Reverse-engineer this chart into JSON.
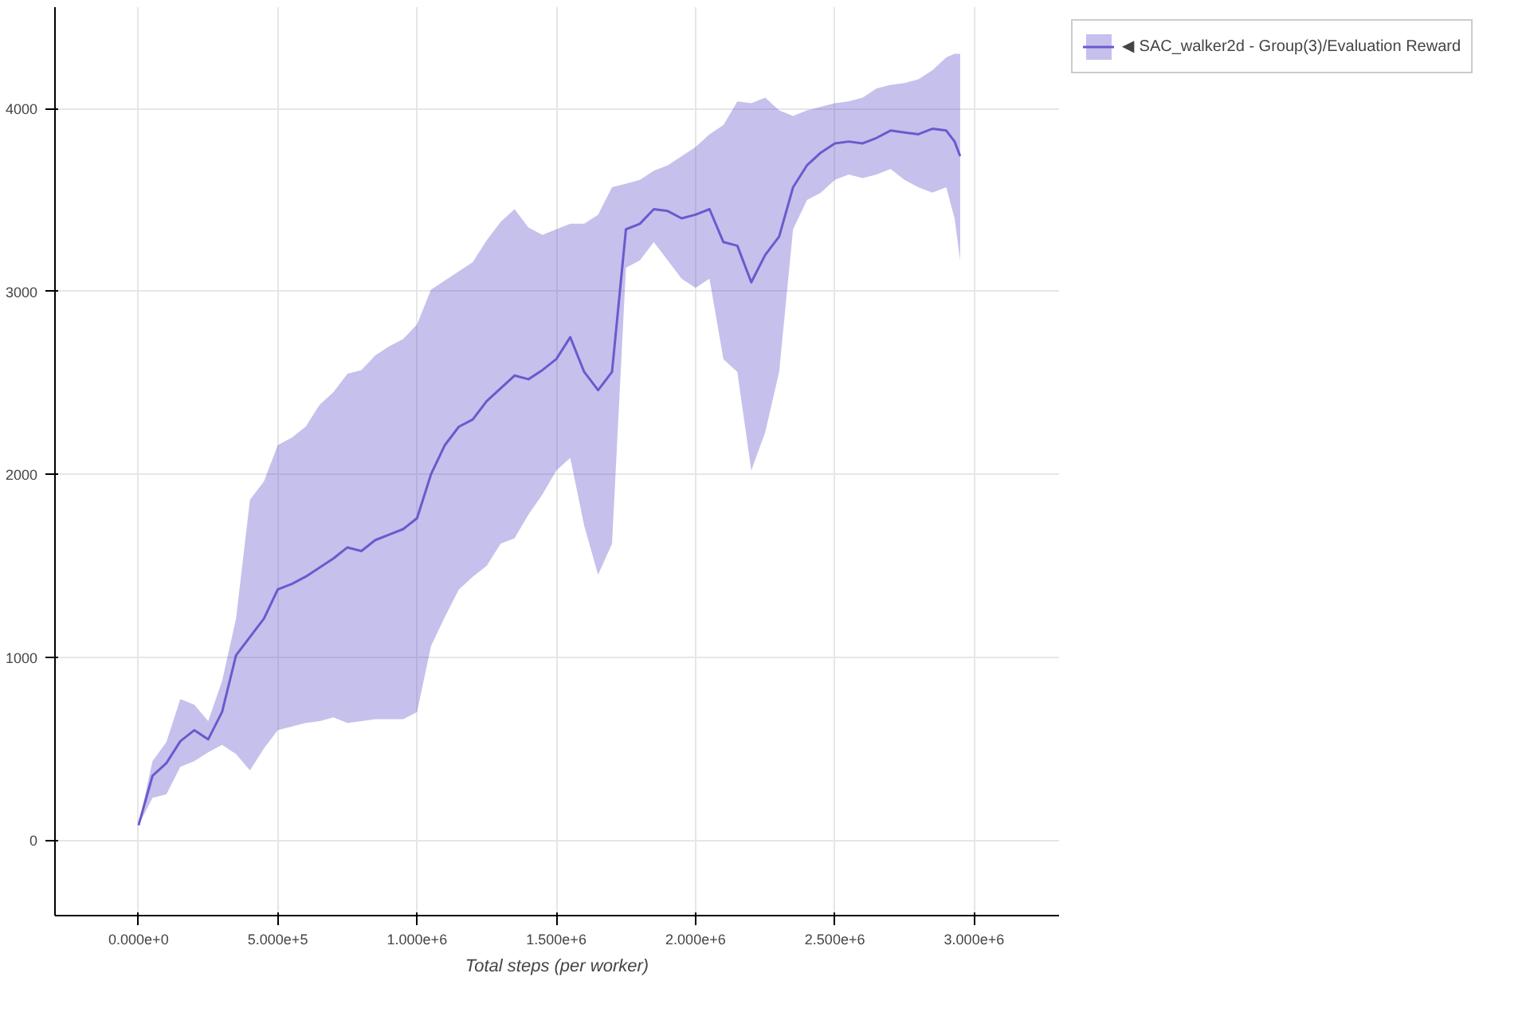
{
  "chart_data": {
    "type": "line",
    "xlabel": "Total steps (per worker)",
    "x": [
      0,
      50000,
      100000,
      150000,
      200000,
      250000,
      300000,
      350000,
      400000,
      450000,
      500000,
      550000,
      600000,
      650000,
      700000,
      750000,
      800000,
      850000,
      900000,
      950000,
      1000000,
      1050000,
      1100000,
      1150000,
      1200000,
      1250000,
      1300000,
      1350000,
      1400000,
      1450000,
      1500000,
      1550000,
      1600000,
      1650000,
      1700000,
      1750000,
      1800000,
      1850000,
      1900000,
      1950000,
      2000000,
      2050000,
      2100000,
      2150000,
      2200000,
      2250000,
      2300000,
      2350000,
      2400000,
      2450000,
      2500000,
      2550000,
      2600000,
      2650000,
      2700000,
      2750000,
      2800000,
      2850000,
      2900000,
      2930000,
      2950000
    ],
    "series": [
      {
        "name": "◀ SAC_walker2d - Group(3)/Evaluation Reward",
        "color": "#6a5acd",
        "values": [
          80,
          350,
          420,
          540,
          600,
          550,
          700,
          1010,
          1110,
          1210,
          1370,
          1400,
          1440,
          1490,
          1540,
          1600,
          1580,
          1640,
          1670,
          1700,
          1760,
          2000,
          2160,
          2260,
          2300,
          2400,
          2470,
          2540,
          2520,
          2570,
          2630,
          2750,
          2560,
          2460,
          2560,
          3340,
          3370,
          3450,
          3440,
          3400,
          3420,
          3450,
          3270,
          3250,
          3050,
          3200,
          3300,
          3570,
          3690,
          3760,
          3810,
          3820,
          3810,
          3840,
          3880,
          3870,
          3860,
          3890,
          3880,
          3820,
          3740
        ],
        "lower": [
          80,
          230,
          250,
          400,
          430,
          480,
          520,
          470,
          380,
          500,
          600,
          620,
          640,
          650,
          670,
          640,
          650,
          660,
          660,
          660,
          700,
          1060,
          1220,
          1370,
          1440,
          1500,
          1620,
          1650,
          1780,
          1890,
          2020,
          2090,
          1720,
          1450,
          1620,
          3130,
          3170,
          3270,
          3170,
          3070,
          3020,
          3070,
          2630,
          2560,
          2020,
          2230,
          2560,
          3340,
          3500,
          3540,
          3610,
          3640,
          3620,
          3640,
          3670,
          3610,
          3570,
          3540,
          3570,
          3400,
          3170
        ],
        "upper": [
          80,
          430,
          535,
          770,
          740,
          650,
          870,
          1210,
          1860,
          1960,
          2160,
          2200,
          2260,
          2380,
          2450,
          2550,
          2570,
          2650,
          2700,
          2740,
          2820,
          3010,
          3060,
          3110,
          3160,
          3280,
          3380,
          3450,
          3350,
          3310,
          3340,
          3370,
          3370,
          3420,
          3570,
          3590,
          3610,
          3660,
          3690,
          3740,
          3790,
          3860,
          3910,
          4040,
          4030,
          4060,
          3990,
          3960,
          3990,
          4010,
          4030,
          4040,
          4060,
          4110,
          4130,
          4140,
          4160,
          4210,
          4280,
          4300,
          4300
        ]
      }
    ],
    "xlim": [
      -300000,
      3305000
    ],
    "xticks": [
      {
        "value": 0,
        "label": "0.000e+0"
      },
      {
        "value": 500000,
        "label": "5.000e+5"
      },
      {
        "value": 1000000,
        "label": "1.000e+6"
      },
      {
        "value": 1500000,
        "label": "1.500e+6"
      },
      {
        "value": 2000000,
        "label": "2.000e+6"
      },
      {
        "value": 2500000,
        "label": "2.500e+6"
      },
      {
        "value": 3000000,
        "label": "3.000e+6"
      }
    ],
    "ylim": [
      -414,
      4555
    ],
    "yticks": [
      0,
      1000,
      2000,
      3000,
      4000
    ],
    "grid": true,
    "legend": "top right"
  }
}
